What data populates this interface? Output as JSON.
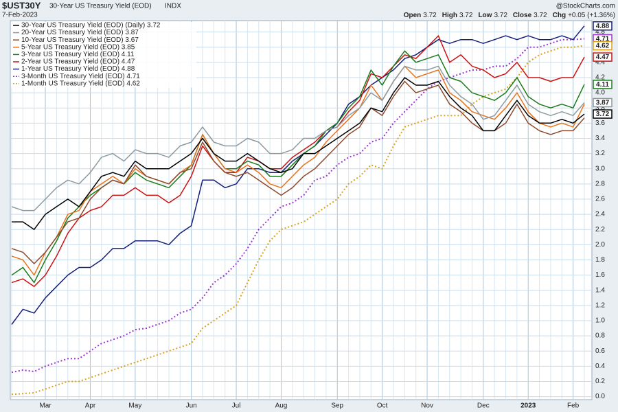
{
  "chart_data": {
    "type": "line",
    "header": {
      "symbol": "$UST30Y",
      "name": "30-Year US Treasury Yield (EOD)",
      "exchange": "INDX",
      "date": "7-Feb-2023",
      "watermark": "@StockCharts.com",
      "quote": [
        {
          "label": "Open",
          "value": 3.72
        },
        {
          "label": "High",
          "value": 3.72
        },
        {
          "label": "Low",
          "value": 3.72
        },
        {
          "label": "Close",
          "value": 3.72
        },
        {
          "label": "Chg",
          "value": "+0.05 (+1.36%)"
        }
      ]
    },
    "categories": [
      null,
      null,
      null,
      "Mar",
      null,
      null,
      null,
      "Apr",
      null,
      null,
      null,
      "May",
      null,
      null,
      null,
      null,
      "Jun",
      null,
      null,
      null,
      "Jul",
      null,
      null,
      null,
      "Aug",
      null,
      null,
      null,
      null,
      "Sep",
      null,
      null,
      null,
      "Oct",
      null,
      null,
      null,
      "Nov",
      null,
      null,
      null,
      null,
      "Dec",
      null,
      null,
      null,
      "2023",
      null,
      null,
      null,
      "Feb",
      null
    ],
    "ylim": [
      -0.04,
      4.95
    ],
    "yticks": [
      {
        "value": 0,
        "label": "0.0"
      },
      0.2,
      0.4,
      0.6,
      0.8,
      {
        "value": 1,
        "label": "1.0"
      },
      1.2,
      1.4,
      1.6,
      1.8,
      {
        "value": 2,
        "label": "2.0"
      },
      2.2,
      2.4,
      2.6,
      2.8,
      {
        "value": 3,
        "label": "3.0"
      },
      3.2,
      3.4,
      3.6,
      3.8,
      {
        "value": 4,
        "label": "4.0"
      },
      4.2,
      4.4,
      4.6,
      4.8
    ],
    "grid": true,
    "legend": "top-left",
    "series": [
      {
        "name": "30-Year US Treasury Yield (EOD) (Daily) 3.72",
        "color": "#000000",
        "dash": "solid",
        "last_label": true,
        "values": [
          2.3,
          2.3,
          2.2,
          2.4,
          2.5,
          2.6,
          2.5,
          2.7,
          2.9,
          2.95,
          2.9,
          3.1,
          3.0,
          3.0,
          3.0,
          3.1,
          3.2,
          3.4,
          3.2,
          3.1,
          3.1,
          3.2,
          3.1,
          3.0,
          2.95,
          3.0,
          3.2,
          3.2,
          3.3,
          3.4,
          3.5,
          3.6,
          3.8,
          3.75,
          4.0,
          4.2,
          4.1,
          4.1,
          4.15,
          3.95,
          3.8,
          3.7,
          3.5,
          3.5,
          3.7,
          3.9,
          3.7,
          3.6,
          3.6,
          3.65,
          3.6,
          3.72
        ]
      },
      {
        "name": "20-Year US Treasury Yield (EOD) 3.87",
        "color": "#8c9aa0",
        "dash": "solid",
        "last_label": true,
        "values": [
          2.5,
          2.45,
          2.45,
          2.6,
          2.75,
          2.85,
          2.8,
          2.95,
          3.15,
          3.2,
          3.1,
          3.25,
          3.2,
          3.2,
          3.15,
          3.3,
          3.35,
          3.55,
          3.35,
          3.3,
          3.3,
          3.4,
          3.35,
          3.2,
          3.2,
          3.25,
          3.4,
          3.4,
          3.5,
          3.55,
          3.7,
          3.8,
          4.0,
          3.9,
          4.15,
          4.35,
          4.3,
          4.3,
          4.35,
          4.1,
          3.95,
          3.85,
          3.65,
          3.7,
          3.9,
          4.1,
          3.85,
          3.75,
          3.7,
          3.75,
          3.7,
          3.87
        ]
      },
      {
        "name": "10-Year US Treasury Yield (EOD) 3.67",
        "color": "#8b4a2b",
        "dash": "solid",
        "last_label": false,
        "values": [
          1.95,
          1.9,
          1.75,
          1.9,
          2.1,
          2.3,
          2.35,
          2.6,
          2.75,
          2.85,
          2.8,
          3.05,
          2.9,
          2.85,
          2.8,
          2.95,
          3.0,
          3.35,
          3.1,
          2.95,
          2.9,
          2.95,
          2.85,
          2.75,
          2.65,
          2.75,
          2.9,
          3.0,
          3.15,
          3.3,
          3.45,
          3.55,
          3.8,
          3.7,
          3.95,
          4.15,
          4.0,
          4.05,
          4.1,
          3.85,
          3.75,
          3.6,
          3.5,
          3.5,
          3.6,
          3.85,
          3.6,
          3.5,
          3.45,
          3.5,
          3.5,
          3.67
        ]
      },
      {
        "name": "5-Year US Treasury Yield (EOD) 3.85",
        "color": "#e8731c",
        "dash": "solid",
        "last_label": false,
        "values": [
          1.85,
          1.8,
          1.6,
          1.9,
          2.1,
          2.4,
          2.45,
          2.7,
          2.8,
          2.9,
          2.8,
          3.0,
          2.9,
          2.85,
          2.8,
          2.95,
          3.05,
          3.45,
          3.2,
          3.0,
          2.95,
          3.05,
          2.95,
          2.8,
          2.75,
          2.9,
          3.05,
          3.15,
          3.35,
          3.5,
          3.65,
          3.8,
          4.1,
          3.9,
          4.15,
          4.35,
          4.2,
          4.25,
          4.3,
          4.0,
          3.9,
          3.75,
          3.7,
          3.65,
          3.8,
          4.0,
          3.75,
          3.6,
          3.55,
          3.6,
          3.55,
          3.85
        ]
      },
      {
        "name": "3-Year US Treasury Yield (EOD) 4.11",
        "color": "#1a7a1a",
        "dash": "solid",
        "last_label": true,
        "values": [
          1.6,
          1.7,
          1.5,
          1.8,
          2.05,
          2.35,
          2.5,
          2.65,
          2.75,
          2.85,
          2.8,
          2.95,
          2.85,
          2.8,
          2.75,
          2.9,
          3.05,
          3.45,
          3.2,
          3.0,
          3.0,
          3.1,
          3.05,
          2.9,
          2.9,
          3.05,
          3.2,
          3.3,
          3.5,
          3.6,
          3.8,
          3.95,
          4.3,
          4.1,
          4.35,
          4.55,
          4.4,
          4.45,
          4.5,
          4.2,
          4.15,
          4.0,
          3.95,
          3.9,
          4.0,
          4.2,
          3.95,
          3.85,
          3.8,
          3.85,
          3.8,
          4.11
        ]
      },
      {
        "name": "2-Year US Treasury Yield (EOD) 4.47",
        "color": "#cc1111",
        "dash": "solid",
        "last_label": true,
        "values": [
          1.5,
          1.55,
          1.45,
          1.6,
          1.85,
          2.15,
          2.35,
          2.45,
          2.5,
          2.65,
          2.65,
          2.75,
          2.65,
          2.65,
          2.55,
          2.65,
          2.9,
          3.3,
          3.1,
          2.95,
          2.95,
          3.15,
          3.1,
          3.0,
          3.0,
          3.15,
          3.25,
          3.35,
          3.5,
          3.55,
          3.75,
          3.9,
          4.25,
          4.2,
          4.35,
          4.5,
          4.45,
          4.6,
          4.75,
          4.4,
          4.5,
          4.35,
          4.3,
          4.2,
          4.25,
          4.4,
          4.2,
          4.2,
          4.15,
          4.2,
          4.2,
          4.47
        ]
      },
      {
        "name": "1-Year US Treasury Yield (EOD) 4.88",
        "color": "#141e78",
        "dash": "solid",
        "last_label": true,
        "values": [
          0.95,
          1.15,
          1.1,
          1.3,
          1.45,
          1.6,
          1.7,
          1.7,
          1.8,
          1.95,
          1.95,
          2.05,
          2.05,
          2.05,
          2.0,
          2.15,
          2.25,
          2.85,
          2.85,
          2.75,
          2.8,
          3.0,
          3.0,
          2.95,
          2.95,
          3.1,
          3.2,
          3.3,
          3.45,
          3.6,
          3.85,
          3.95,
          4.1,
          4.2,
          4.3,
          4.45,
          4.5,
          4.6,
          4.7,
          4.65,
          4.7,
          4.7,
          4.65,
          4.7,
          4.75,
          4.7,
          4.75,
          4.7,
          4.7,
          4.75,
          4.7,
          4.88
        ]
      },
      {
        "name": "3-Month US Treasury Yield (EOD) 4.71",
        "color": "#9933cc",
        "dash": "dotted",
        "last_label": true,
        "values": [
          0.32,
          0.35,
          0.33,
          0.4,
          0.45,
          0.5,
          0.5,
          0.6,
          0.7,
          0.75,
          0.8,
          0.88,
          0.9,
          0.95,
          1.0,
          1.1,
          1.15,
          1.3,
          1.5,
          1.6,
          1.75,
          1.95,
          2.2,
          2.35,
          2.5,
          2.55,
          2.65,
          2.85,
          2.9,
          3.05,
          3.15,
          3.2,
          3.35,
          3.4,
          3.6,
          3.75,
          3.9,
          4.05,
          4.15,
          4.2,
          4.25,
          4.3,
          4.3,
          4.35,
          4.35,
          4.45,
          4.6,
          4.6,
          4.65,
          4.7,
          4.7,
          4.71
        ]
      },
      {
        "name": "1-Month US Treasury Yield (EOD) 4.62",
        "color": "#d9a21b",
        "dash": "dotted",
        "last_label": true,
        "values": [
          0.03,
          0.04,
          0.05,
          0.1,
          0.15,
          0.2,
          0.2,
          0.25,
          0.3,
          0.35,
          0.4,
          0.45,
          0.5,
          0.55,
          0.6,
          0.65,
          0.7,
          0.9,
          1.0,
          1.1,
          1.2,
          1.5,
          1.8,
          2.05,
          2.2,
          2.25,
          2.3,
          2.4,
          2.5,
          2.6,
          2.8,
          2.9,
          3.05,
          3.0,
          3.3,
          3.55,
          3.6,
          3.65,
          3.7,
          3.7,
          3.7,
          3.85,
          3.95,
          4.0,
          4.05,
          4.2,
          4.4,
          4.5,
          4.55,
          4.6,
          4.6,
          4.62
        ]
      }
    ]
  }
}
